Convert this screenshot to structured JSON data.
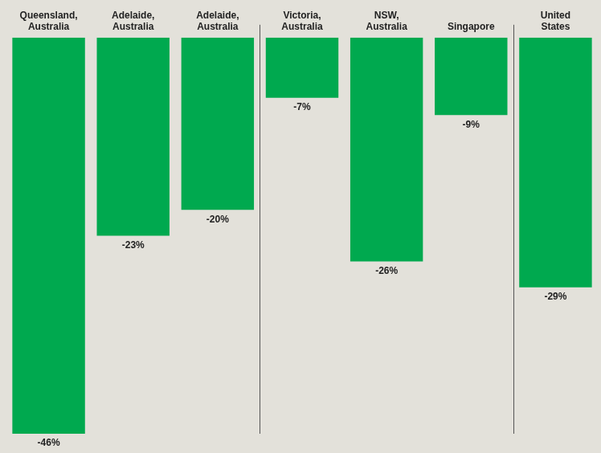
{
  "chart_data": {
    "type": "bar",
    "categories": [
      "Queensland, Australia",
      "Adelaide, Australia",
      "Adelaide, Australia",
      "Victoria, Australia",
      "NSW, Australia",
      "Singapore",
      "United States"
    ],
    "values": [
      -46,
      -23,
      -20,
      -7,
      -26,
      -9,
      -29
    ],
    "value_labels": [
      "-46%",
      "-23%",
      "-20%",
      "-7%",
      "-26%",
      "-9%",
      "-29%"
    ],
    "color": "#00a94f",
    "ylim": [
      -46,
      0
    ],
    "grid": false,
    "data_labels": true,
    "tick_labels": "x"
  }
}
